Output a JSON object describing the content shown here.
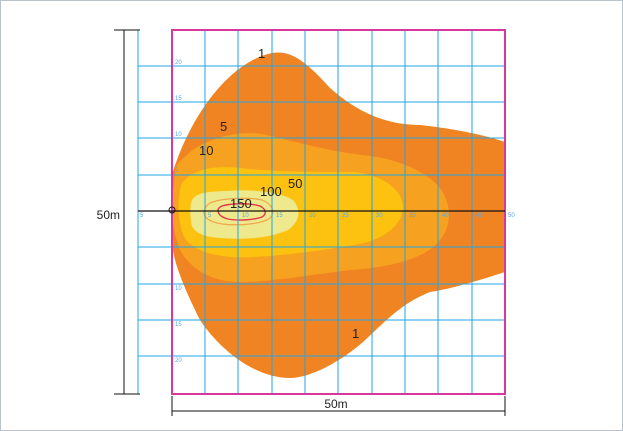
{
  "diagram": {
    "dimension_left": "50m",
    "dimension_bottom": "50m",
    "contour_labels": {
      "lvl1_top": "1",
      "lvl1_bottom": "1",
      "lvl5": "5",
      "lvl10": "10",
      "lvl50": "50",
      "lvl100": "100",
      "lvl150": "150"
    },
    "vertical_ticks": [
      "20",
      "15",
      "10",
      "5",
      "5",
      "10",
      "15",
      "20"
    ],
    "horizontal_ticks": [
      "5",
      "5",
      "10",
      "15",
      "20",
      "25",
      "30",
      "35",
      "40",
      "45",
      "50"
    ],
    "colors": {
      "grid": "#22a5e6",
      "border": "#d7399b",
      "level_1": "#f18422",
      "level_5": "#f6a11f",
      "level_10": "#fcc20f",
      "level_50": "#eee98d",
      "level_150": "#e2354b"
    }
  }
}
